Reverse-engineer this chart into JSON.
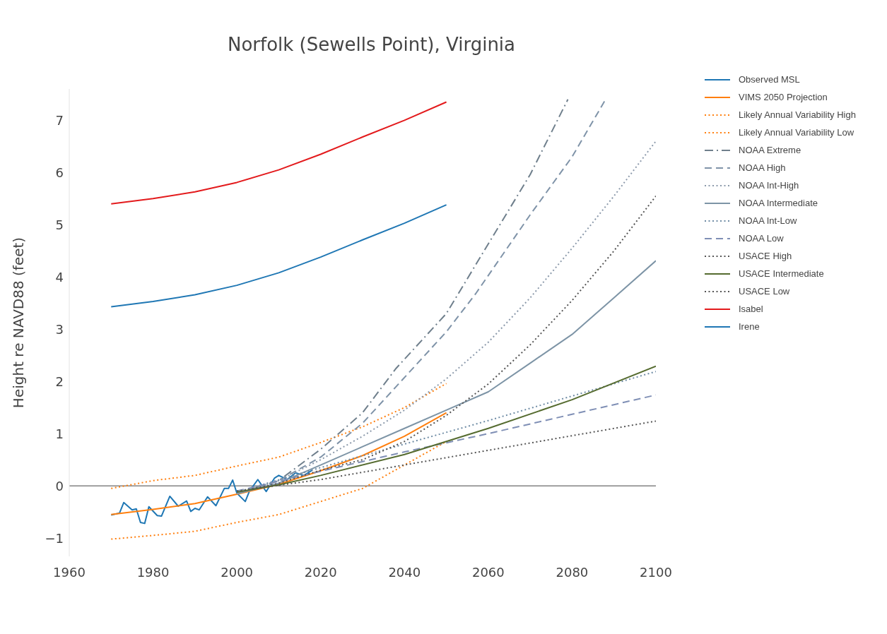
{
  "chart_data": {
    "type": "line",
    "title": "Norfolk (Sewells Point), Virginia",
    "ylabel": "Height re NAVD88 (feet)",
    "xlim": [
      1960,
      2100
    ],
    "xticks": [
      1960,
      1980,
      2000,
      2020,
      2040,
      2060,
      2080,
      2100
    ],
    "ylim": [
      -1.35,
      7.6
    ],
    "yticks": [
      -1,
      0,
      1,
      2,
      3,
      4,
      5,
      6,
      7
    ],
    "grid": false,
    "legend": "right",
    "marker": "none",
    "ref_lines": [
      {
        "axis": "y",
        "value": 0,
        "color": "#444444"
      }
    ],
    "series": [
      {
        "name": "Observed MSL",
        "color": "#1f77b4",
        "line_style": "solid",
        "x": [
          1970,
          1972,
          1973,
          1975,
          1976,
          1977,
          1978,
          1979,
          1981,
          1982,
          1984,
          1986,
          1988,
          1989,
          1990,
          1991,
          1993,
          1995,
          1997,
          1998,
          1999,
          2000,
          2002,
          2003,
          2005,
          2007,
          2009,
          2010,
          2012,
          2014,
          2016,
          2018
        ],
        "values": [
          -0.56,
          -0.52,
          -0.32,
          -0.46,
          -0.44,
          -0.7,
          -0.72,
          -0.4,
          -0.57,
          -0.58,
          -0.2,
          -0.39,
          -0.29,
          -0.49,
          -0.43,
          -0.46,
          -0.21,
          -0.38,
          -0.05,
          -0.05,
          0.11,
          -0.14,
          -0.3,
          -0.1,
          0.12,
          -0.11,
          0.15,
          0.2,
          0.12,
          0.25,
          0.2,
          0.3
        ]
      },
      {
        "name": "VIMS 2050 Projection",
        "color": "#ff7f0e",
        "line_style": "solid",
        "x": [
          1970,
          1980,
          1990,
          2000,
          2010,
          2020,
          2030,
          2040,
          2050
        ],
        "values": [
          -0.55,
          -0.45,
          -0.34,
          -0.16,
          0.03,
          0.29,
          0.58,
          0.95,
          1.4
        ]
      },
      {
        "name": "Likely Annual Variability High",
        "color": "#ff7f0e",
        "line_style": "dotted",
        "x": [
          1970,
          1980,
          1990,
          2000,
          2010,
          2020,
          2030,
          2040,
          2050
        ],
        "values": [
          -0.05,
          0.1,
          0.2,
          0.38,
          0.55,
          0.83,
          1.13,
          1.5,
          1.96
        ]
      },
      {
        "name": "Likely Annual Variability Low",
        "color": "#ff7f0e",
        "line_style": "dotted",
        "x": [
          1970,
          1980,
          1990,
          2000,
          2010,
          2020,
          2030,
          2040,
          2050
        ],
        "values": [
          -1.02,
          -0.95,
          -0.87,
          -0.7,
          -0.55,
          -0.3,
          -0.05,
          0.4,
          0.85
        ]
      },
      {
        "name": "NOAA Extreme",
        "color": "#6f7f8c",
        "line_style": "dashdot",
        "x": [
          2000,
          2010,
          2020,
          2030,
          2038,
          2050,
          2059,
          2070,
          2079
        ],
        "values": [
          -0.15,
          0.1,
          0.7,
          1.4,
          2.25,
          3.3,
          4.5,
          5.96,
          7.4
        ]
      },
      {
        "name": "NOAA High",
        "color": "#7f93a8",
        "line_style": "dashed",
        "x": [
          2000,
          2010,
          2020,
          2030,
          2038,
          2050,
          2057,
          2070,
          2080,
          2088
        ],
        "values": [
          -0.15,
          0.1,
          0.55,
          1.2,
          1.9,
          2.95,
          3.68,
          5.19,
          6.3,
          7.4
        ]
      },
      {
        "name": "NOAA Int-High",
        "color": "#8c9aab",
        "line_style": "dotted",
        "x": [
          2000,
          2010,
          2020,
          2030,
          2040,
          2050,
          2060,
          2070,
          2080,
          2090,
          2100
        ],
        "values": [
          -0.15,
          0.1,
          0.5,
          0.95,
          1.45,
          2.05,
          2.75,
          3.6,
          4.55,
          5.55,
          6.6
        ]
      },
      {
        "name": "NOAA Intermediate",
        "color": "#7d94a6",
        "line_style": "solid",
        "x": [
          2000,
          2010,
          2020,
          2030,
          2040,
          2050,
          2060,
          2070,
          2080,
          2090,
          2100
        ],
        "values": [
          -0.15,
          0.05,
          0.4,
          0.75,
          1.1,
          1.45,
          1.8,
          2.35,
          2.9,
          3.6,
          4.31
        ]
      },
      {
        "name": "NOAA Int-Low",
        "color": "#6f8ca5",
        "line_style": "dotted",
        "x": [
          2000,
          2020,
          2040,
          2060,
          2080,
          2100
        ],
        "values": [
          -0.12,
          0.35,
          0.8,
          1.25,
          1.72,
          2.19
        ]
      },
      {
        "name": "NOAA Low",
        "color": "#7f8fb5",
        "line_style": "dashed",
        "x": [
          2000,
          2020,
          2040,
          2060,
          2080,
          2100
        ],
        "values": [
          -0.1,
          0.28,
          0.65,
          1.0,
          1.37,
          1.74
        ]
      },
      {
        "name": "USACE High",
        "color": "#555555",
        "line_style": "dotted",
        "x": [
          2000,
          2010,
          2020,
          2030,
          2040,
          2050,
          2060,
          2070,
          2080,
          2090,
          2100
        ],
        "values": [
          -0.12,
          0.05,
          0.3,
          0.5,
          0.85,
          1.35,
          1.95,
          2.7,
          3.55,
          4.5,
          5.55
        ]
      },
      {
        "name": "USACE Intermediate",
        "color": "#556b2f",
        "line_style": "solid",
        "x": [
          2000,
          2010,
          2020,
          2040,
          2060,
          2080,
          2100
        ],
        "values": [
          -0.12,
          0.02,
          0.2,
          0.6,
          1.1,
          1.65,
          2.29
        ]
      },
      {
        "name": "USACE Low",
        "color": "#555555",
        "line_style": "dotted",
        "x": [
          2000,
          2020,
          2040,
          2060,
          2080,
          2100
        ],
        "values": [
          -0.1,
          0.12,
          0.4,
          0.68,
          0.96,
          1.24
        ]
      },
      {
        "name": "Isabel",
        "color": "#e31a1c",
        "line_style": "solid",
        "x": [
          1970,
          1980,
          1990,
          2000,
          2010,
          2020,
          2030,
          2040,
          2050
        ],
        "values": [
          5.4,
          5.5,
          5.63,
          5.81,
          6.05,
          6.35,
          6.68,
          7.0,
          7.35
        ]
      },
      {
        "name": "Irene",
        "color": "#1f77b4",
        "line_style": "solid",
        "x": [
          1970,
          1980,
          1990,
          2000,
          2010,
          2020,
          2030,
          2040,
          2050
        ],
        "values": [
          3.43,
          3.53,
          3.66,
          3.84,
          4.08,
          4.38,
          4.71,
          5.03,
          5.38
        ]
      }
    ]
  }
}
